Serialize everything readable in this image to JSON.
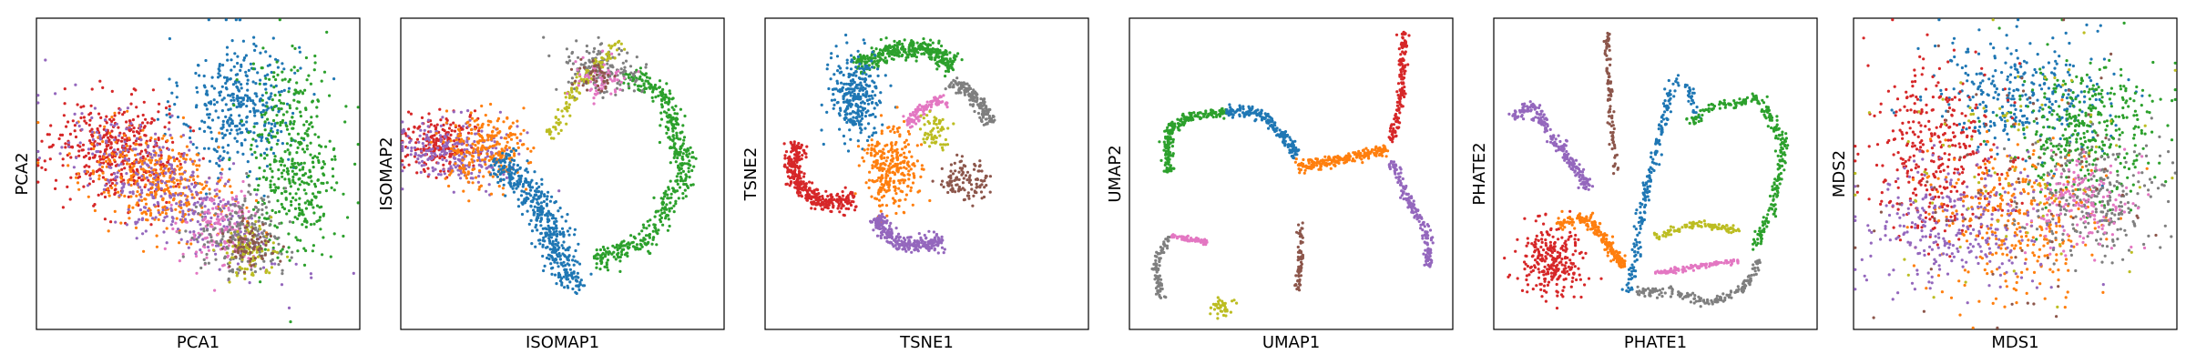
{
  "figure": {
    "panels": [
      {
        "xlabel": "PCA1",
        "ylabel": "PCA2"
      },
      {
        "xlabel": "ISOMAP1",
        "ylabel": "ISOMAP2"
      },
      {
        "xlabel": "TSNE1",
        "ylabel": "TSNE2"
      },
      {
        "xlabel": "UMAP1",
        "ylabel": "UMAP2"
      },
      {
        "xlabel": "PHATE1",
        "ylabel": "PHATE2"
      },
      {
        "xlabel": "MDS1",
        "ylabel": "MDS2"
      }
    ]
  },
  "palette": {
    "blue": "#1f77b4",
    "orange": "#ff7f0e",
    "green": "#2ca02c",
    "red": "#d62728",
    "purple": "#9467bd",
    "brown": "#8c564b",
    "pink": "#e377c2",
    "gray": "#7f7f7f",
    "olive": "#bcbd22"
  },
  "chart_data": [
    {
      "type": "scatter",
      "xlabel": "PCA1",
      "ylabel": "PCA2",
      "xlim": [
        0,
        100
      ],
      "ylim": [
        0,
        100
      ],
      "grid": false,
      "series": [
        {
          "color": "#1f77b4",
          "shape": "blob",
          "x": 63,
          "y": 72,
          "sx": 9,
          "sy": 11,
          "rot": 0,
          "n": 380
        },
        {
          "color": "#2ca02c",
          "shape": "blob",
          "x": 80,
          "y": 55,
          "sx": 7,
          "sy": 16,
          "rot": 0,
          "n": 420
        },
        {
          "color": "#d62728",
          "shape": "blob",
          "x": 25,
          "y": 57,
          "sx": 10,
          "sy": 8,
          "rot": -20,
          "n": 420
        },
        {
          "color": "#ff7f0e",
          "shape": "blob",
          "x": 38,
          "y": 47,
          "sx": 12,
          "sy": 7,
          "rot": -30,
          "n": 380
        },
        {
          "color": "#9467bd",
          "shape": "blob",
          "x": 40,
          "y": 45,
          "sx": 20,
          "sy": 8,
          "rot": -35,
          "n": 380
        },
        {
          "color": "#e377c2",
          "shape": "blob",
          "x": 58,
          "y": 32,
          "sx": 6,
          "sy": 6,
          "rot": 0,
          "n": 160
        },
        {
          "color": "#7f7f7f",
          "shape": "blob",
          "x": 64,
          "y": 30,
          "sx": 7,
          "sy": 7,
          "rot": -30,
          "n": 200
        },
        {
          "color": "#bcbd22",
          "shape": "blob",
          "x": 65,
          "y": 25,
          "sx": 4,
          "sy": 4,
          "rot": 0,
          "n": 90
        },
        {
          "color": "#8c564b",
          "shape": "blob",
          "x": 66,
          "y": 28,
          "sx": 4,
          "sy": 4,
          "rot": 0,
          "n": 80
        }
      ]
    },
    {
      "type": "scatter",
      "xlabel": "ISOMAP1",
      "ylabel": "ISOMAP2",
      "xlim": [
        0,
        100
      ],
      "ylim": [
        0,
        100
      ],
      "grid": false,
      "series": [
        {
          "color": "#d62728",
          "shape": "blob",
          "x": 12,
          "y": 60,
          "sx": 5,
          "sy": 5,
          "rot": 0,
          "n": 220
        },
        {
          "color": "#9467bd",
          "shape": "blob",
          "x": 17,
          "y": 57,
          "sx": 9,
          "sy": 5,
          "rot": -10,
          "n": 260
        },
        {
          "color": "#ff7f0e",
          "shape": "blob",
          "x": 26,
          "y": 58,
          "sx": 6,
          "sy": 6,
          "rot": 0,
          "n": 240
        },
        {
          "color": "#1f77b4",
          "shape": "path",
          "pts": [
            [
              30,
              55
            ],
            [
              45,
              38
            ],
            [
              50,
              20
            ],
            [
              56,
              14
            ]
          ],
          "w": 5,
          "n": 460
        },
        {
          "color": "#2ca02c",
          "shape": "path",
          "pts": [
            [
              60,
              22
            ],
            [
              76,
              28
            ],
            [
              88,
              50
            ],
            [
              82,
              76
            ],
            [
              70,
              82
            ]
          ],
          "w": 3.5,
          "n": 460
        },
        {
          "color": "#7f7f7f",
          "shape": "blob",
          "x": 62,
          "y": 84,
          "sx": 6,
          "sy": 4,
          "rot": 0,
          "n": 160
        },
        {
          "color": "#bcbd22",
          "shape": "path",
          "pts": [
            [
              46,
              62
            ],
            [
              56,
              80
            ],
            [
              68,
              92
            ]
          ],
          "w": 2.5,
          "n": 110
        },
        {
          "color": "#e377c2",
          "shape": "blob",
          "x": 62,
          "y": 80,
          "sx": 4,
          "sy": 3,
          "rot": 0,
          "n": 70
        },
        {
          "color": "#8c564b",
          "shape": "blob",
          "x": 60,
          "y": 82,
          "sx": 3,
          "sy": 3,
          "rot": 0,
          "n": 40
        }
      ]
    },
    {
      "type": "scatter",
      "xlabel": "TSNE1",
      "ylabel": "TSNE2",
      "xlim": [
        0,
        100
      ],
      "ylim": [
        0,
        100
      ],
      "grid": false,
      "series": [
        {
          "color": "#2ca02c",
          "shape": "path",
          "pts": [
            [
              28,
              84
            ],
            [
              40,
              90
            ],
            [
              52,
              90
            ],
            [
              58,
              84
            ]
          ],
          "w": 3,
          "n": 360
        },
        {
          "color": "#1f77b4",
          "shape": "blob",
          "x": 28,
          "y": 75,
          "sx": 4,
          "sy": 7,
          "rot": 0,
          "n": 300
        },
        {
          "color": "#d62728",
          "shape": "path",
          "pts": [
            [
              10,
              60
            ],
            [
              8,
              50
            ],
            [
              14,
              42
            ],
            [
              22,
              40
            ],
            [
              28,
              42
            ]
          ],
          "w": 3,
          "n": 360
        },
        {
          "color": "#ff7f0e",
          "shape": "blob",
          "x": 39,
          "y": 52,
          "sx": 4,
          "sy": 7,
          "rot": 0,
          "n": 280
        },
        {
          "color": "#9467bd",
          "shape": "path",
          "pts": [
            [
              34,
              36
            ],
            [
              40,
              28
            ],
            [
              48,
              27
            ],
            [
              55,
              28
            ]
          ],
          "w": 2.5,
          "n": 260
        },
        {
          "color": "#7f7f7f",
          "shape": "path",
          "pts": [
            [
              58,
              80
            ],
            [
              66,
              74
            ],
            [
              70,
              66
            ]
          ],
          "w": 2.5,
          "n": 160
        },
        {
          "color": "#e377c2",
          "shape": "path",
          "pts": [
            [
              44,
              66
            ],
            [
              50,
              72
            ],
            [
              56,
              74
            ]
          ],
          "w": 2,
          "n": 110
        },
        {
          "color": "#bcbd22",
          "shape": "blob",
          "x": 52,
          "y": 64,
          "sx": 2,
          "sy": 3,
          "rot": 0,
          "n": 60
        },
        {
          "color": "#8c564b",
          "shape": "blob",
          "x": 62,
          "y": 48,
          "sx": 4,
          "sy": 3,
          "rot": -20,
          "n": 110
        }
      ]
    },
    {
      "type": "scatter",
      "xlabel": "UMAP1",
      "ylabel": "UMAP2",
      "xlim": [
        0,
        100
      ],
      "ylim": [
        0,
        100
      ],
      "grid": false,
      "series": [
        {
          "color": "#2ca02c",
          "shape": "path",
          "pts": [
            [
              12,
              50
            ],
            [
              12,
              64
            ],
            [
              18,
              68
            ],
            [
              30,
              70
            ]
          ],
          "w": 1.6,
          "n": 220
        },
        {
          "color": "#1f77b4",
          "shape": "path",
          "pts": [
            [
              30,
              70
            ],
            [
              40,
              70
            ],
            [
              46,
              64
            ],
            [
              52,
              56
            ]
          ],
          "w": 1.8,
          "n": 200
        },
        {
          "color": "#ff7f0e",
          "shape": "path",
          "pts": [
            [
              52,
              52
            ],
            [
              62,
              54
            ],
            [
              72,
              56
            ],
            [
              80,
              58
            ]
          ],
          "w": 1.8,
          "n": 220
        },
        {
          "color": "#d62728",
          "shape": "path",
          "pts": [
            [
              81,
              60
            ],
            [
              84,
              74
            ],
            [
              85,
              96
            ]
          ],
          "w": 1.2,
          "n": 150
        },
        {
          "color": "#9467bd",
          "shape": "path",
          "pts": [
            [
              81,
              54
            ],
            [
              86,
              42
            ],
            [
              92,
              32
            ],
            [
              93,
              20
            ]
          ],
          "w": 1.5,
          "n": 170
        },
        {
          "color": "#7f7f7f",
          "shape": "path",
          "pts": [
            [
              10,
              10
            ],
            [
              8,
              20
            ],
            [
              12,
              30
            ]
          ],
          "w": 1.2,
          "n": 90
        },
        {
          "color": "#e377c2",
          "shape": "path",
          "pts": [
            [
              13,
              30
            ],
            [
              18,
              29
            ],
            [
              24,
              28
            ]
          ],
          "w": 0.8,
          "n": 70
        },
        {
          "color": "#8c564b",
          "shape": "path",
          "pts": [
            [
              52,
              12
            ],
            [
              53,
              24
            ],
            [
              53,
              34
            ]
          ],
          "w": 0.9,
          "n": 70
        },
        {
          "color": "#bcbd22",
          "shape": "blob",
          "x": 28,
          "y": 7,
          "sx": 2,
          "sy": 1.5,
          "rot": 0,
          "n": 40
        }
      ]
    },
    {
      "type": "scatter",
      "xlabel": "PHATE1",
      "ylabel": "PHATE2",
      "xlim": [
        0,
        100
      ],
      "ylim": [
        0,
        100
      ],
      "grid": false,
      "series": [
        {
          "color": "#9467bd",
          "shape": "path",
          "pts": [
            [
              6,
              68
            ],
            [
              12,
              72
            ],
            [
              22,
              56
            ],
            [
              30,
              45
            ]
          ],
          "w": 2,
          "n": 220
        },
        {
          "color": "#d62728",
          "shape": "blob",
          "x": 18,
          "y": 22,
          "sx": 5,
          "sy": 6,
          "rot": 0,
          "n": 260
        },
        {
          "color": "#ff7f0e",
          "shape": "path",
          "pts": [
            [
              20,
              34
            ],
            [
              28,
              36
            ],
            [
              34,
              30
            ],
            [
              40,
              20
            ]
          ],
          "w": 2,
          "n": 200
        },
        {
          "color": "#8c564b",
          "shape": "path",
          "pts": [
            [
              35,
              95
            ],
            [
              36,
              70
            ],
            [
              38,
              50
            ]
          ],
          "w": 0.9,
          "n": 100
        },
        {
          "color": "#1f77b4",
          "shape": "path",
          "pts": [
            [
              42,
              12
            ],
            [
              46,
              40
            ],
            [
              56,
              80
            ],
            [
              60,
              78
            ],
            [
              63,
              68
            ]
          ],
          "w": 1.5,
          "n": 220
        },
        {
          "color": "#2ca02c",
          "shape": "path",
          "pts": [
            [
              60,
              66
            ],
            [
              68,
              72
            ],
            [
              82,
              74
            ],
            [
              90,
              60
            ],
            [
              86,
              38
            ],
            [
              80,
              26
            ]
          ],
          "w": 1.5,
          "n": 260
        },
        {
          "color": "#bcbd22",
          "shape": "path",
          "pts": [
            [
              50,
              30
            ],
            [
              62,
              34
            ],
            [
              76,
              32
            ]
          ],
          "w": 1.2,
          "n": 110
        },
        {
          "color": "#e377c2",
          "shape": "path",
          "pts": [
            [
              50,
              18
            ],
            [
              62,
              20
            ],
            [
              76,
              22
            ]
          ],
          "w": 1,
          "n": 110
        },
        {
          "color": "#7f7f7f",
          "shape": "path",
          "pts": [
            [
              44,
              12
            ],
            [
              56,
              12
            ],
            [
              66,
              8
            ],
            [
              78,
              14
            ],
            [
              82,
              22
            ]
          ],
          "w": 1.5,
          "n": 170
        }
      ]
    },
    {
      "type": "scatter",
      "xlabel": "MDS1",
      "ylabel": "MDS2",
      "xlim": [
        0,
        100
      ],
      "ylim": [
        0,
        100
      ],
      "grid": false,
      "series": [
        {
          "color": "#1f77b4",
          "shape": "blob",
          "x": 52,
          "y": 75,
          "sx": 14,
          "sy": 9,
          "rot": 0,
          "n": 320
        },
        {
          "color": "#2ca02c",
          "shape": "blob",
          "x": 72,
          "y": 64,
          "sx": 11,
          "sy": 11,
          "rot": 0,
          "n": 360
        },
        {
          "color": "#d62728",
          "shape": "blob",
          "x": 26,
          "y": 56,
          "sx": 11,
          "sy": 14,
          "rot": 0,
          "n": 380
        },
        {
          "color": "#ff7f0e",
          "shape": "blob",
          "x": 50,
          "y": 36,
          "sx": 13,
          "sy": 12,
          "rot": 0,
          "n": 340
        },
        {
          "color": "#9467bd",
          "shape": "blob",
          "x": 32,
          "y": 34,
          "sx": 15,
          "sy": 10,
          "rot": 0,
          "n": 300
        },
        {
          "color": "#7f7f7f",
          "shape": "blob",
          "x": 74,
          "y": 42,
          "sx": 10,
          "sy": 9,
          "rot": 0,
          "n": 260
        },
        {
          "color": "#e377c2",
          "shape": "blob",
          "x": 70,
          "y": 40,
          "sx": 8,
          "sy": 8,
          "rot": 0,
          "n": 150
        },
        {
          "color": "#bcbd22",
          "shape": "blob",
          "x": 50,
          "y": 50,
          "sx": 20,
          "sy": 20,
          "rot": 0,
          "n": 80
        },
        {
          "color": "#8c564b",
          "shape": "blob",
          "x": 50,
          "y": 50,
          "sx": 20,
          "sy": 20,
          "rot": 0,
          "n": 80
        }
      ]
    }
  ]
}
